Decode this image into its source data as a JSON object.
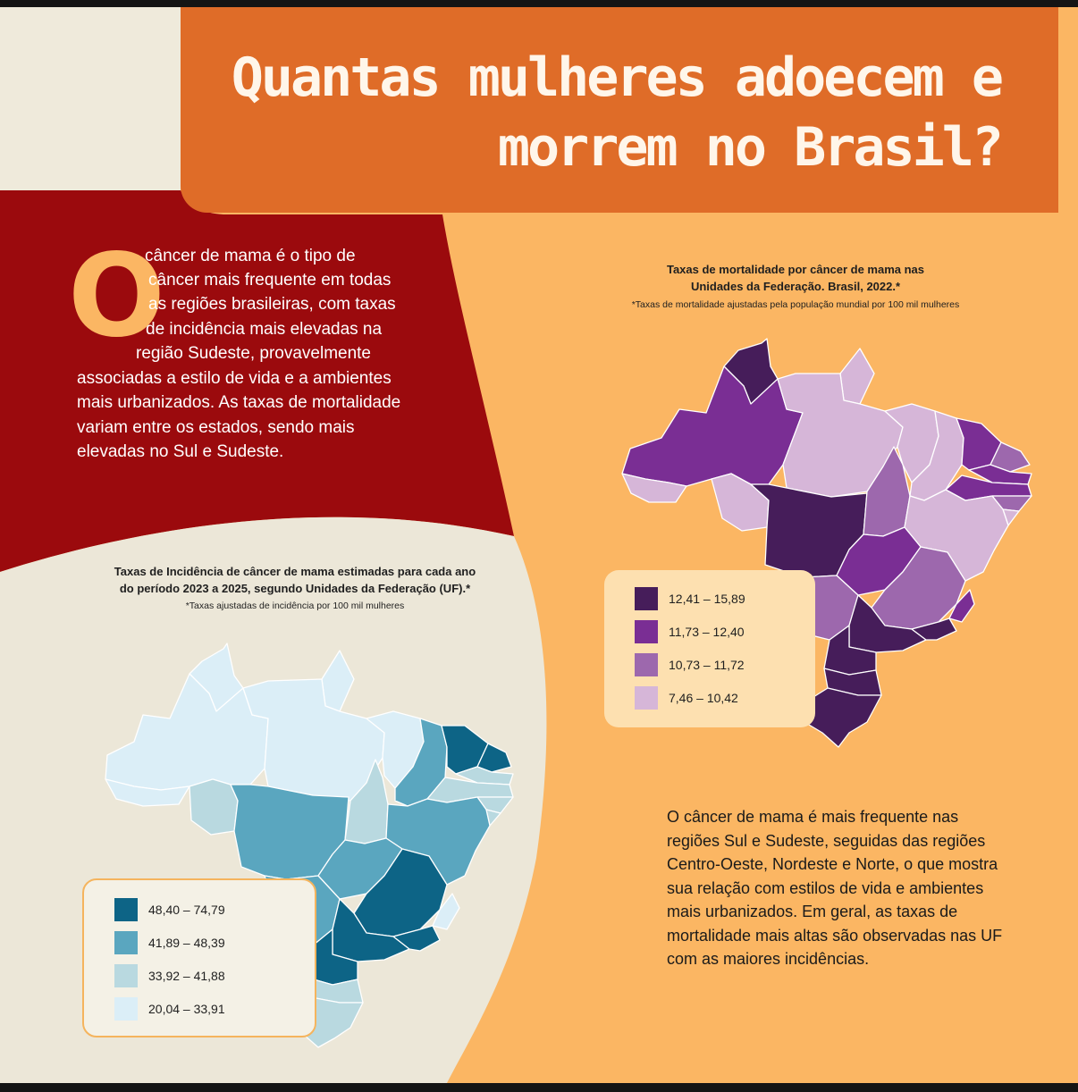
{
  "header": {
    "title_line1": "Quantas mulheres adoecem e",
    "title_line2": "morrem no Brasil?"
  },
  "intro": {
    "dropcap": "O",
    "lines": [
      "câncer de mama é o tipo de",
      "câncer mais frequente em todas",
      "as regiões brasileiras, com taxas",
      "de incidência mais elevadas na",
      "região Sudeste, provavelmente",
      "associadas a estilo de vida e a ambientes",
      "mais urbanizados. As taxas de mortalidade",
      "variam entre os estados, sendo mais",
      "elevadas no Sul e Sudeste."
    ]
  },
  "mortality_map": {
    "title_line1": "Taxas de mortalidade por câncer de mama nas",
    "title_line2": "Unidades da Federação. Brasil, 2022.*",
    "note": "*Taxas de mortalidade ajustadas pela população mundial por 100 mil mulheres",
    "legend": [
      {
        "label": "12,41 – 15,89",
        "color": "#461d5a"
      },
      {
        "label": "11,73 – 12,40",
        "color": "#7a2e94"
      },
      {
        "label": "10,73 – 11,72",
        "color": "#9d68ad"
      },
      {
        "label": "7,46 – 10,42",
        "color": "#d6b6d8"
      }
    ]
  },
  "incidence_map": {
    "title_line1": "Taxas de Incidência de câncer de mama estimadas para cada ano",
    "title_line2": "do período 2023 a 2025, segundo Unidades da Federação (UF).*",
    "note": "*Taxas ajustadas de incidência por 100 mil mulheres",
    "legend": [
      {
        "label": "48,40 – 74,79",
        "color": "#0d6486"
      },
      {
        "label": "41,89 – 48,39",
        "color": "#5aa6bf"
      },
      {
        "label": "33,92 – 41,88",
        "color": "#b9d9e0"
      },
      {
        "label": "20,04 – 33,91",
        "color": "#dbeef7"
      }
    ]
  },
  "outro": {
    "text": "O câncer de mama é mais frequente nas regiões Sul e Sudeste, seguidas das regiões Centro-Oeste, Nordeste e Norte, o que mostra sua relação com estilos de vida e ambientes mais urbanizados. Em geral, as taxas de mortalidade mais altas são observadas nas UF com as maiores incidências."
  }
}
